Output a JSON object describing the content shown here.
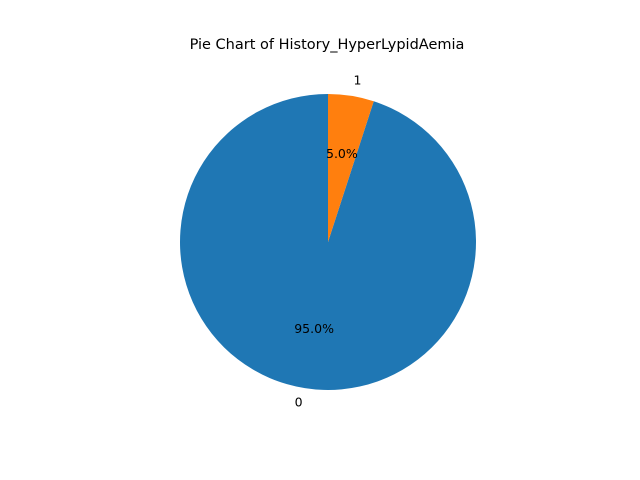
{
  "chart_data": {
    "type": "pie",
    "title": "Pie Chart of History_HyperLypidAemia",
    "labels": [
      "0",
      "1"
    ],
    "values": [
      95.0,
      5.0
    ],
    "percent_labels": [
      "95.0%",
      "5.0%"
    ],
    "colors": [
      "#1f77b4",
      "#ff7f0e"
    ],
    "start_angle_deg": 90,
    "direction": "counterclockwise",
    "legend": "none"
  }
}
